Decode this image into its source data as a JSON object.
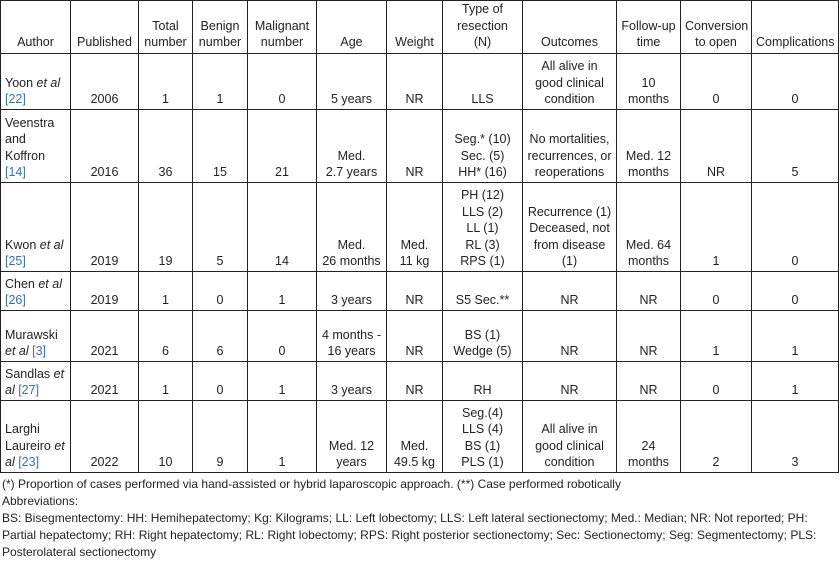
{
  "headers": [
    "Author",
    "Published",
    "Total\nnumber",
    "Benign\nnumber",
    "Malignant\nnumber",
    "Age",
    "Weight",
    "Type of\nresection (N)",
    "Outcomes",
    "Follow-up\ntime",
    "Conversion\nto open",
    "Complications"
  ],
  "rows": [
    {
      "author": {
        "name": "Yoon ",
        "etal": "et al",
        "post": "",
        "ref": " [22]"
      },
      "published": "2006",
      "total": "1",
      "benign": "1",
      "malignant": "0",
      "age": "5 years",
      "weight": "NR",
      "resection": "LLS",
      "outcomes": "All alive in\ngood clinical\ncondition",
      "followup": "10\nmonths",
      "conversion": "0",
      "complications": "0"
    },
    {
      "author": {
        "name": "Veenstra and Koffron",
        "etal": "",
        "post": "",
        "ref": " [14]"
      },
      "published": "2016",
      "total": "36",
      "benign": "15",
      "malignant": "21",
      "age": "Med.\n2.7 years",
      "weight": "NR",
      "resection": "Seg.* (10)\nSec. (5)\nHH* (16)",
      "outcomes": "No mortalities,\nrecurrences, or\nreoperations",
      "followup": "Med. 12\nmonths",
      "conversion": "NR",
      "complications": "5"
    },
    {
      "author": {
        "name": "Kwon ",
        "etal": "et al",
        "post": "",
        "ref": " [25]"
      },
      "published": "2019",
      "total": "19",
      "benign": "5",
      "malignant": "14",
      "age": "Med.\n26 months",
      "weight": "Med.\n11 kg",
      "resection": "PH (12)\nLLS (2)\nLL (1)\nRL (3)\nRPS (1)",
      "outcomes": "Recurrence (1)\nDeceased, not\nfrom disease\n(1)",
      "followup": "Med. 64\nmonths",
      "conversion": "1",
      "complications": "0"
    },
    {
      "author": {
        "name": "Chen ",
        "etal": "et al",
        "post": "",
        "ref": " [26]"
      },
      "published": "2019",
      "total": "1",
      "benign": "0",
      "malignant": "1",
      "age": "3 years",
      "weight": "NR",
      "resection": "S5 Sec.**",
      "outcomes": "NR",
      "followup": "NR",
      "conversion": "0",
      "complications": "0"
    },
    {
      "author": {
        "name": "Murawski ",
        "etal": "et al",
        "post": "",
        "ref": " [3]"
      },
      "published": "2021",
      "total": "6",
      "benign": "6",
      "malignant": "0",
      "age": "4 months -\n16 years",
      "weight": "NR",
      "resection": "BS (1)\nWedge (5)",
      "outcomes": "NR",
      "followup": "NR",
      "conversion": "1",
      "complications": "1"
    },
    {
      "author": {
        "name": "Sandlas ",
        "etal": "et al",
        "post": "",
        "ref": " [27]"
      },
      "published": "2021",
      "total": "1",
      "benign": "0",
      "malignant": "1",
      "age": "3 years",
      "weight": "NR",
      "resection": "RH",
      "outcomes": "NR",
      "followup": "NR",
      "conversion": "0",
      "complications": "1"
    },
    {
      "author": {
        "name": "Larghi Laureiro ",
        "etal": "et al",
        "post": "",
        "ref": " [23]"
      },
      "published": "2022",
      "total": "10",
      "benign": "9",
      "malignant": "1",
      "age": "Med. 12\nyears",
      "weight": "Med.\n49.5 kg",
      "resection": "Seg.(4)\nLLS (4)\nBS (1)\nPLS (1)",
      "outcomes": "All alive in\ngood clinical\ncondition",
      "followup": "24\nmonths",
      "conversion": "2",
      "complications": "3"
    }
  ],
  "notes": {
    "footnote": "(*) Proportion of cases performed via hand-assisted or hybrid laparoscopic approach. (**) Case performed robotically",
    "abbrev_title": "Abbreviations:",
    "abbrev_text": "BS: Bisegmentectomy: HH: Hemihepatectomy; Kg: Kilograms; LL: Left lobectomy; LLS: Left lateral sectionectomy; Med.: Median; NR: Not reported; PH: Partial hepatectomy; RH: Right hepatectomy; RL: Right lobectomy; RPS: Right posterior sectionectomy; Sec: Sectionectomy; Seg: Segmentectomy; PLS: Posterolateral sectionectomy"
  },
  "colors": {
    "ref": "#3a6fb0",
    "border": "#222222"
  }
}
